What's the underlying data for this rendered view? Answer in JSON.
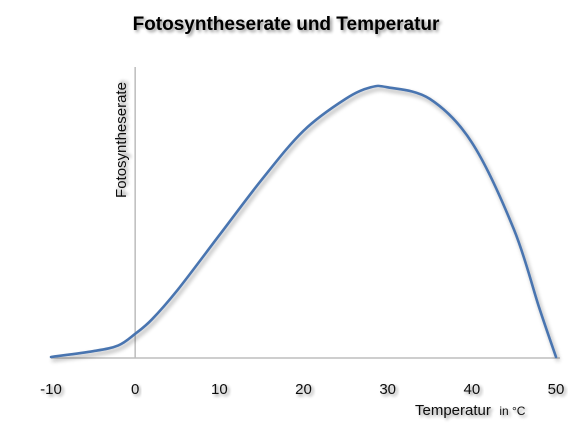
{
  "chart_data": {
    "type": "line",
    "title": "Fotosyntheserate und Temperatur",
    "xlabel": "Temperatur",
    "xlabel_unit": "in °C",
    "ylabel": "Fotosyntheserate",
    "xlim": [
      -10,
      50
    ],
    "ylim": [
      0,
      100
    ],
    "x_ticks": [
      "-10",
      "0",
      "10",
      "20",
      "30",
      "40",
      "50"
    ],
    "grid": false,
    "legend": "none",
    "series": [
      {
        "color": "#4a74b0",
        "points": [
          [
            -10,
            0
          ],
          [
            -5,
            2
          ],
          [
            -2,
            4
          ],
          [
            0,
            8
          ],
          [
            2,
            13
          ],
          [
            5,
            23
          ],
          [
            10,
            42
          ],
          [
            15,
            61
          ],
          [
            20,
            78
          ],
          [
            25,
            89
          ],
          [
            28,
            93
          ],
          [
            30,
            93
          ],
          [
            35,
            89
          ],
          [
            40,
            74
          ],
          [
            45,
            44
          ],
          [
            48,
            17
          ],
          [
            50,
            0
          ]
        ]
      }
    ]
  }
}
